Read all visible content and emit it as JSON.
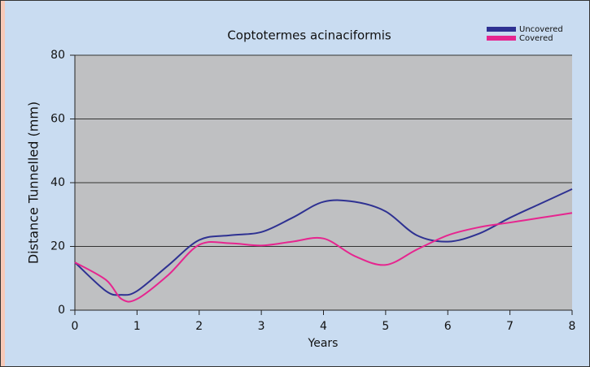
{
  "chart_data": {
    "type": "line",
    "title": "Coptotermes acinaciformis",
    "xlabel": "Years",
    "ylabel": "Distance Tunnelled (mm)",
    "x": [
      0,
      0.5,
      0.75,
      1,
      1.5,
      2,
      2.5,
      3,
      3.5,
      4,
      4.5,
      5,
      5.5,
      6,
      6.5,
      7,
      7.5,
      8
    ],
    "series": [
      {
        "name": "Uncovered",
        "color": "#2e3192",
        "values": [
          15,
          6,
          4.8,
          6,
          14,
          22,
          23.5,
          24.5,
          29,
          34,
          34,
          31,
          23.5,
          21.5,
          24,
          29,
          33.5,
          38
        ]
      },
      {
        "name": "Covered",
        "color": "#e6258f",
        "values": [
          15,
          9.5,
          3.5,
          3.5,
          11,
          20.5,
          21,
          20.3,
          21.5,
          22.5,
          17,
          14.2,
          19,
          23.5,
          26,
          27.5,
          29,
          30.5
        ]
      }
    ],
    "xlim": [
      0,
      8
    ],
    "xticks": [
      0,
      1,
      2,
      3,
      4,
      5,
      6,
      7,
      8
    ],
    "ylim": [
      0,
      80
    ],
    "yticks": [
      0,
      20,
      40,
      60,
      80
    ],
    "grid": true,
    "legend": "top-right",
    "plot_color": "#bfc0c2"
  }
}
